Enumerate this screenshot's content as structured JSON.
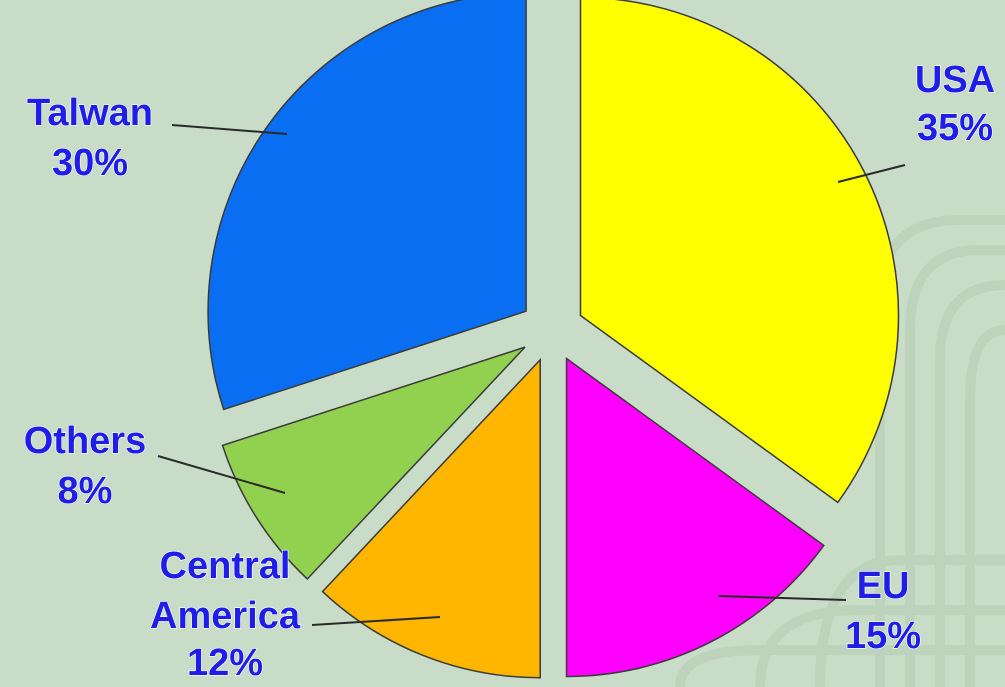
{
  "chart_data": {
    "type": "pie",
    "title": "",
    "exploded": true,
    "start_angle_deg": 0,
    "direction": "clockwise",
    "slices": [
      {
        "label": "USA",
        "value": 35,
        "value_label": "35%",
        "color": "#ffff00"
      },
      {
        "label": "EU",
        "value": 15,
        "value_label": "15%",
        "color": "#ff00ff"
      },
      {
        "label": "Central America",
        "value": 12,
        "value_label": "12%",
        "color": "#ffb600"
      },
      {
        "label": "Others",
        "value": 8,
        "value_label": "8%",
        "color": "#92d050"
      },
      {
        "label": "Talwan",
        "value": 30,
        "value_label": "30%",
        "color": "#0a6ef2"
      }
    ],
    "label_color": "#1e1ee8",
    "background_color": "#c9dcc8"
  }
}
